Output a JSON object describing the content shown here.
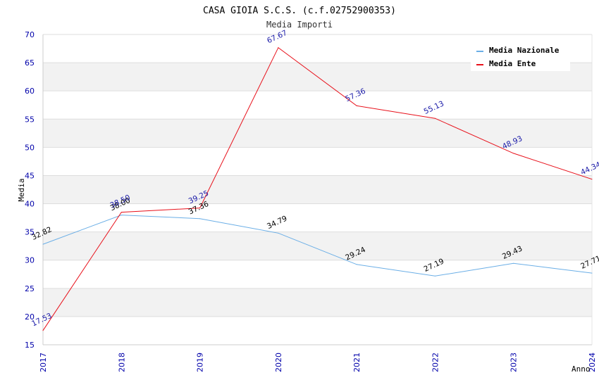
{
  "chart_data": {
    "type": "line",
    "title": "CASA GIOIA S.C.S. (c.f.02752900353)",
    "subtitle": "Media Importi",
    "xlabel": "Anno",
    "ylabel": "Media",
    "ylim": [
      15,
      70
    ],
    "y_ticks": [
      15,
      20,
      25,
      30,
      35,
      40,
      45,
      50,
      55,
      60,
      65,
      70
    ],
    "categories": [
      "2017",
      "2018",
      "2019",
      "2020",
      "2021",
      "2022",
      "2023",
      "2024"
    ],
    "series": [
      {
        "name": "Media Nazionale",
        "color": "#6aaee6",
        "label_color": "#000000",
        "values": [
          32.82,
          38.0,
          37.36,
          34.79,
          29.24,
          27.19,
          29.43,
          27.71
        ],
        "labels": [
          "32.82",
          "38.00",
          "37.36",
          "34.79",
          "29.24",
          "27.19",
          "29.43",
          "27.71"
        ]
      },
      {
        "name": "Media Ente",
        "color": "#e8101a",
        "label_color": "#1a1aa8",
        "values": [
          17.53,
          38.5,
          39.25,
          67.67,
          57.36,
          55.13,
          48.93,
          44.34
        ],
        "labels": [
          "17.53",
          "38.50",
          "39.25",
          "67.67",
          "57.36",
          "55.13",
          "48.93",
          "44.34"
        ]
      }
    ],
    "grid": true,
    "legend_position": "top-right"
  }
}
